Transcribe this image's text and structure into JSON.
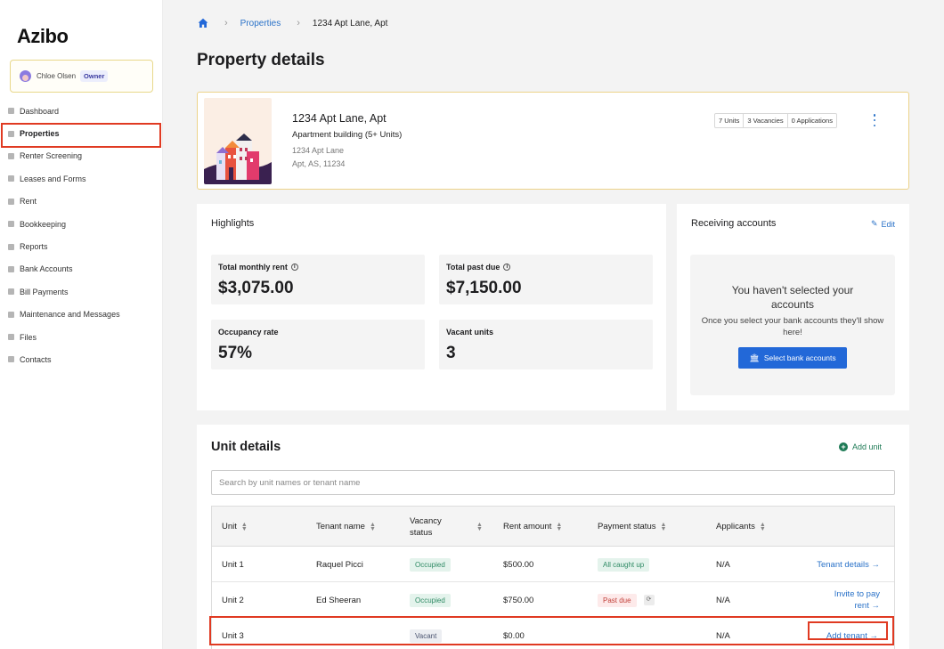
{
  "app": {
    "logo": "Azibo"
  },
  "user": {
    "name": "Chloe Olsen",
    "role": "Owner"
  },
  "sidebar": {
    "items": [
      {
        "label": "Dashboard",
        "icon": "home-icon"
      },
      {
        "label": "Properties",
        "icon": "building-icon",
        "active": true
      },
      {
        "label": "Renter Screening",
        "icon": "screening-icon"
      },
      {
        "label": "Leases and Forms",
        "icon": "document-icon"
      },
      {
        "label": "Rent",
        "icon": "rent-icon"
      },
      {
        "label": "Bookkeeping",
        "icon": "book-icon"
      },
      {
        "label": "Reports",
        "icon": "report-icon"
      },
      {
        "label": "Bank Accounts",
        "icon": "bank-icon"
      },
      {
        "label": "Bill Payments",
        "icon": "bill-icon"
      },
      {
        "label": "Maintenance and Messages",
        "icon": "wrench-icon"
      },
      {
        "label": "Files",
        "icon": "folder-icon"
      },
      {
        "label": "Contacts",
        "icon": "contacts-icon"
      }
    ]
  },
  "breadcrumb": {
    "link": "Properties",
    "current": "1234 Apt Lane, Apt"
  },
  "page_title": "Property details",
  "property": {
    "name": "1234 Apt Lane, Apt",
    "type": "Apartment building (5+ Units)",
    "address_line1": "1234 Apt Lane",
    "address_line2": "Apt, AS, 11234",
    "units_chip": "7 Units",
    "vacancies_chip": "3 Vacancies",
    "applications_chip": "0 Applications"
  },
  "highlights": {
    "title": "Highlights",
    "total_monthly_rent_label": "Total monthly rent",
    "total_monthly_rent": "$3,075.00",
    "total_past_due_label": "Total past due",
    "total_past_due": "$7,150.00",
    "occupancy_rate_label": "Occupancy rate",
    "occupancy_rate": "57%",
    "vacant_units_label": "Vacant units",
    "vacant_units": "3"
  },
  "receiving": {
    "title": "Receiving accounts",
    "edit_label": "Edit",
    "empty_title": "You haven't selected your accounts",
    "empty_sub": "Once you select your bank accounts they'll show here!",
    "select_button": "Select bank accounts"
  },
  "units": {
    "title": "Unit details",
    "add_unit_label": "Add unit",
    "search_placeholder": "Search by unit names or tenant name",
    "columns": [
      "Unit",
      "Tenant name",
      "Vacancy status",
      "Rent amount",
      "Payment status",
      "Applicants"
    ],
    "rows": [
      {
        "unit": "Unit 1",
        "tenant": "Raquel Picci",
        "vacancy": "Occupied",
        "rent": "$500.00",
        "payment": "All caught up",
        "applicants": "N/A",
        "action": "Tenant details →"
      },
      {
        "unit": "Unit 2",
        "tenant": "Ed Sheeran",
        "vacancy": "Occupied",
        "rent": "$750.00",
        "payment": "Past due",
        "applicants": "N/A",
        "action_line1": "Invite to pay",
        "action_line2": "rent →"
      },
      {
        "unit": "Unit 3",
        "tenant": "",
        "vacancy": "Vacant",
        "rent": "$0.00",
        "payment": "",
        "applicants": "N/A",
        "action": "Add tenant →"
      }
    ]
  },
  "colors": {
    "accent": "#2268d8",
    "link": "#2a72c8",
    "highlight_border": "#e03a22",
    "success": "#2e8a64",
    "danger": "#c2413a"
  }
}
